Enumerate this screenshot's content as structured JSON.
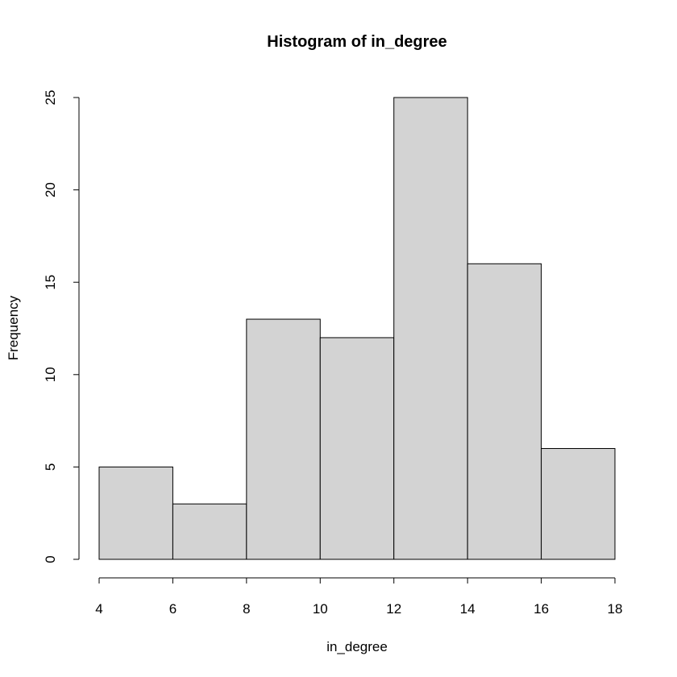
{
  "chart_data": {
    "type": "bar",
    "title": "Histogram of in_degree",
    "xlabel": "in_degree",
    "ylabel": "Frequency",
    "bins": [
      {
        "start": 4,
        "end": 6,
        "value": 5
      },
      {
        "start": 6,
        "end": 8,
        "value": 3
      },
      {
        "start": 8,
        "end": 10,
        "value": 13
      },
      {
        "start": 10,
        "end": 12,
        "value": 12
      },
      {
        "start": 12,
        "end": 14,
        "value": 25
      },
      {
        "start": 14,
        "end": 16,
        "value": 16
      },
      {
        "start": 16,
        "end": 18,
        "value": 6
      }
    ],
    "xlim": [
      4,
      18
    ],
    "ylim": [
      0,
      25
    ],
    "xticks": [
      4,
      6,
      8,
      10,
      12,
      14,
      16,
      18
    ],
    "yticks": [
      0,
      5,
      10,
      15,
      20,
      25
    ],
    "grid": false,
    "legend": "none",
    "bar_color": "#d3d3d3",
    "edge_color": "#000000"
  }
}
